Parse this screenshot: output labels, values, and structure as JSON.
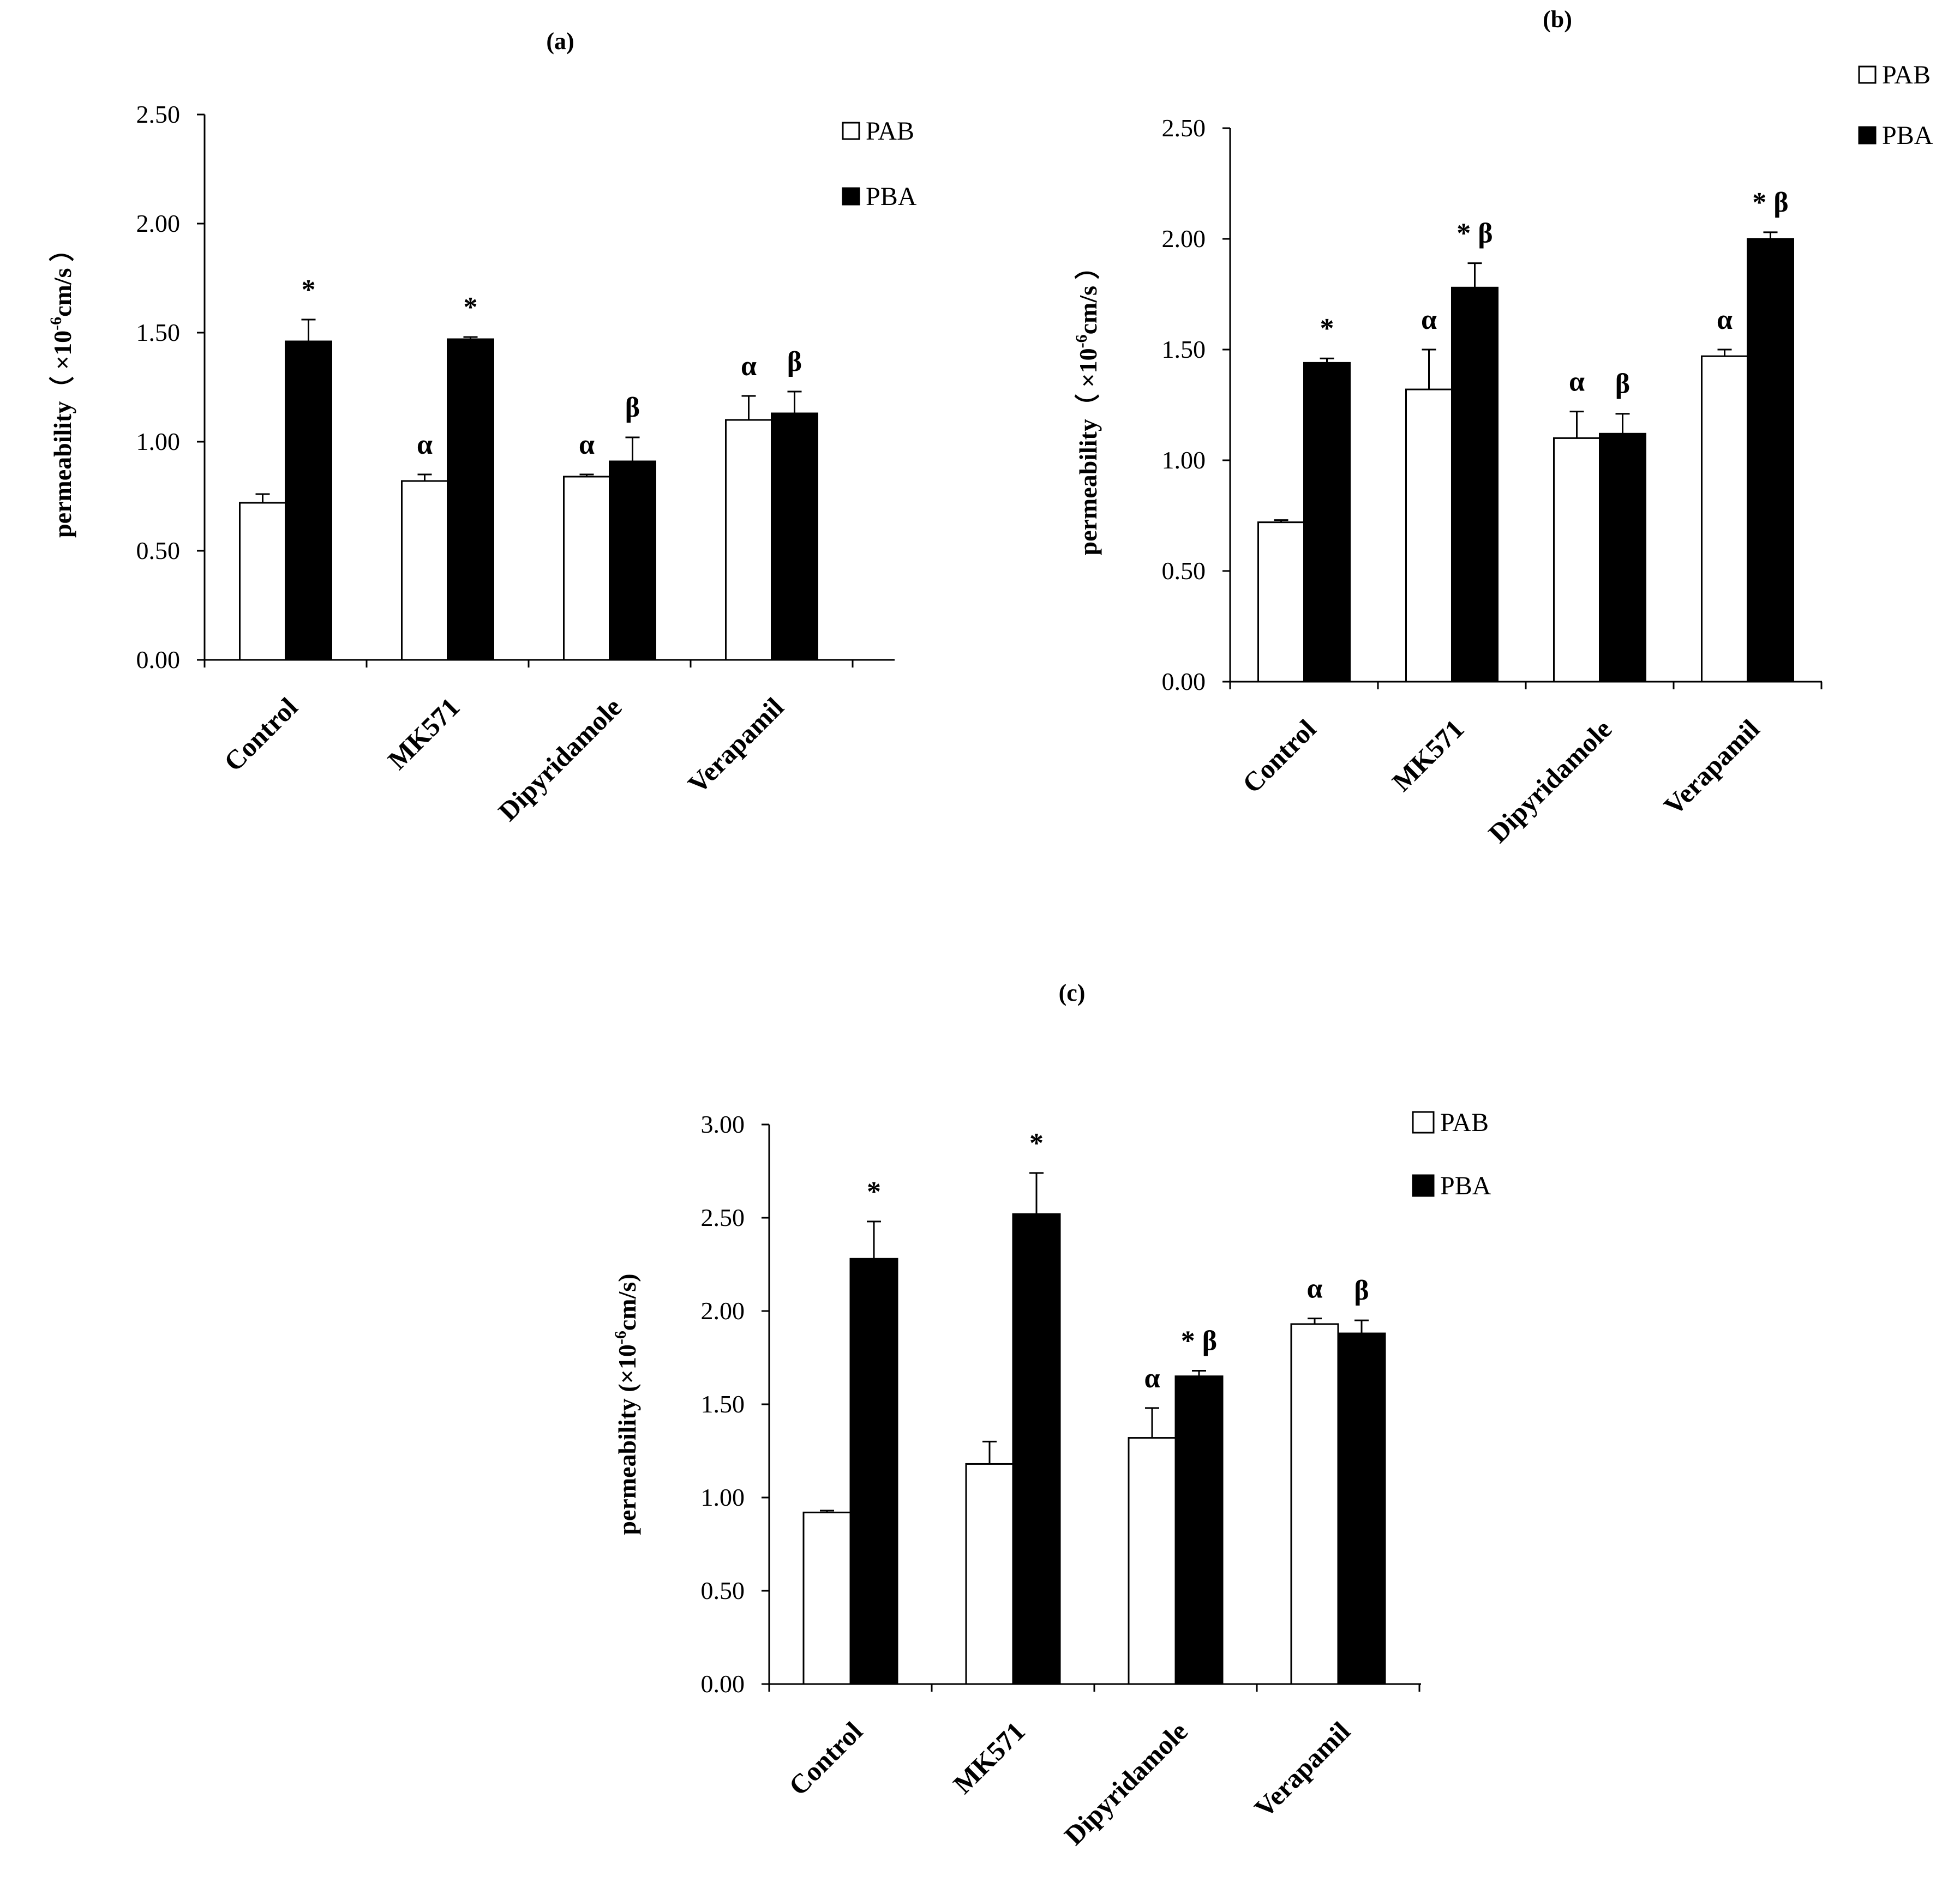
{
  "chart_data": [
    {
      "type": "bar",
      "panel": "(a)",
      "categories": [
        "Control",
        "MK571",
        "Dipyridamole",
        "Verapamil"
      ],
      "series": [
        {
          "name": "PAB",
          "color": "#ffffff",
          "values": [
            0.72,
            0.82,
            0.84,
            1.1
          ],
          "errors": [
            0.04,
            0.03,
            0.01,
            0.11
          ]
        },
        {
          "name": "PBA",
          "color": "#000000",
          "values": [
            1.46,
            1.47,
            0.91,
            1.13
          ],
          "errors": [
            0.1,
            0.01,
            0.11,
            0.1
          ]
        }
      ],
      "annotations": {
        "PAB": [
          "",
          "α",
          "α",
          "α"
        ],
        "PBA": [
          "*",
          "*",
          "β",
          "β"
        ]
      },
      "yticks": [
        "0.00",
        "0.50",
        "1.00",
        "1.50",
        "2.00",
        "2.50"
      ],
      "ylim": [
        0,
        2.5
      ],
      "ylabel_prefix": "permeability（ ×10",
      "ylabel_exp": "-6",
      "ylabel_suffix": "cm/s ）",
      "legend": [
        "PAB",
        "PBA"
      ]
    },
    {
      "type": "bar",
      "panel": "(b)",
      "categories": [
        "Control",
        "MK571",
        "Dipyridamole",
        "Verapamil"
      ],
      "series": [
        {
          "name": "PAB",
          "color": "#ffffff",
          "values": [
            0.72,
            1.32,
            1.1,
            1.47
          ],
          "errors": [
            0.01,
            0.18,
            0.12,
            0.03
          ]
        },
        {
          "name": "PBA",
          "color": "#000000",
          "values": [
            1.44,
            1.78,
            1.12,
            2.0
          ],
          "errors": [
            0.02,
            0.11,
            0.09,
            0.03
          ]
        }
      ],
      "annotations": {
        "PAB": [
          "",
          "α",
          "α",
          "α"
        ],
        "PBA": [
          "*",
          "* β",
          "β",
          "* β"
        ]
      },
      "yticks": [
        "0.00",
        "0.50",
        "1.00",
        "1.50",
        "2.00",
        "2.50"
      ],
      "ylim": [
        0,
        2.5
      ],
      "ylabel_prefix": "permeability（ ×10",
      "ylabel_exp": "-6",
      "ylabel_suffix": "cm/s ）",
      "legend": [
        "PAB",
        "PBA"
      ]
    },
    {
      "type": "bar",
      "panel": "(c)",
      "categories": [
        "Control",
        "MK571",
        "Dipyridamole",
        "Verapamil"
      ],
      "series": [
        {
          "name": "PAB",
          "color": "#ffffff",
          "values": [
            0.92,
            1.18,
            1.32,
            1.93
          ],
          "errors": [
            0.01,
            0.12,
            0.16,
            0.03
          ]
        },
        {
          "name": "PBA",
          "color": "#000000",
          "values": [
            2.28,
            2.52,
            1.65,
            1.88
          ],
          "errors": [
            0.2,
            0.22,
            0.03,
            0.07
          ]
        }
      ],
      "annotations": {
        "PAB": [
          "",
          "",
          "α",
          "α"
        ],
        "PBA": [
          "*",
          "*",
          "* β",
          "β"
        ]
      },
      "yticks": [
        "0.00",
        "0.50",
        "1.00",
        "1.50",
        "2.00",
        "2.50",
        "3.00"
      ],
      "ylim": [
        0,
        3.0
      ],
      "ylabel_prefix": "permeability (×10",
      "ylabel_exp": "-6",
      "ylabel_suffix": "cm/s)",
      "legend": [
        "PAB",
        "PBA"
      ]
    }
  ]
}
